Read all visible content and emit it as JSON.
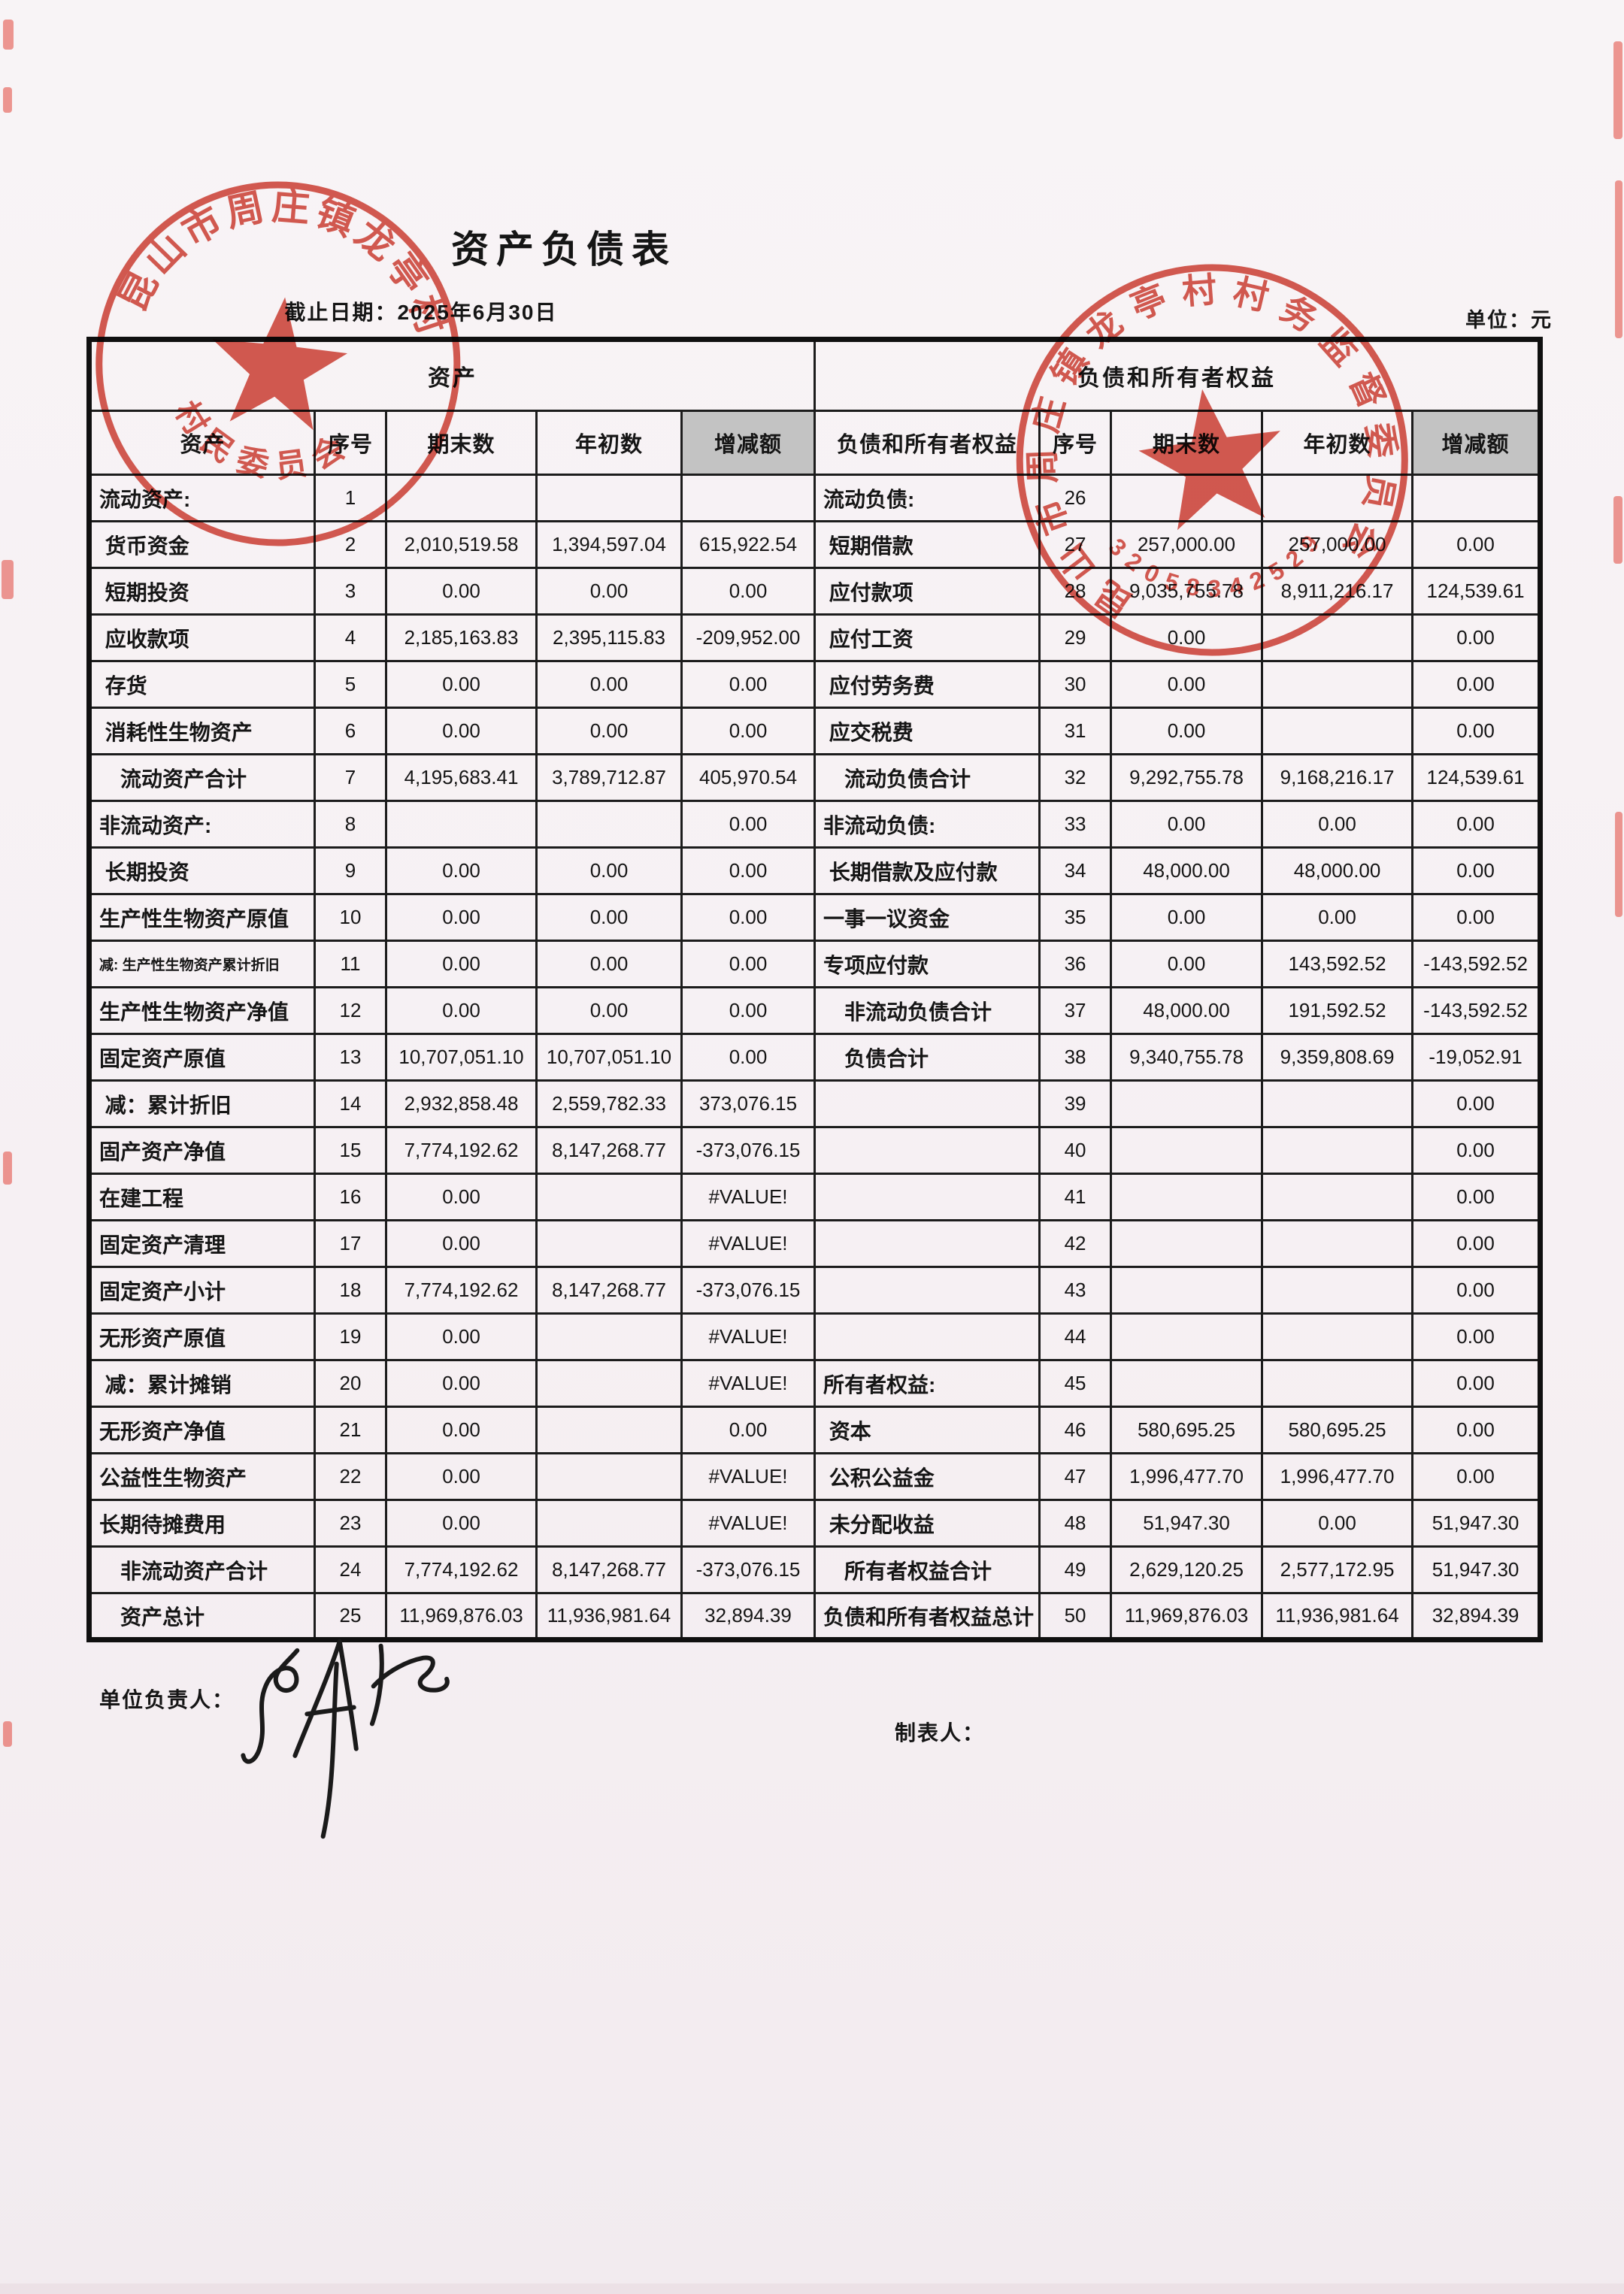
{
  "page": {
    "title": "资产负债表",
    "subtitle": "截止日期：2025年6月30日",
    "unit_label": "单位：元",
    "footer": {
      "left_label": "单位负责人：",
      "right_label": "制表人："
    }
  },
  "table": {
    "group_headers": {
      "assets": "资产",
      "liabilities": "负债和所有者权益"
    },
    "columns": {
      "asset_label": "资产",
      "liab_label": "负债和所有者权益",
      "no": "序号",
      "ending": "期末数",
      "beginning": "年初数",
      "change": "增减额"
    },
    "rows": [
      {
        "a_label": "流动资产:",
        "a_no": "1",
        "a_end": "",
        "a_beg": "",
        "a_chg": "",
        "l_label": "流动负债:",
        "l_no": "26",
        "l_end": "",
        "l_beg": "",
        "l_chg": ""
      },
      {
        "a_label": " 货币资金",
        "a_no": "2",
        "a_end": "2,010,519.58",
        "a_beg": "1,394,597.04",
        "a_chg": "615,922.54",
        "l_label": " 短期借款",
        "l_no": "27",
        "l_end": "257,000.00",
        "l_beg": "257,000.00",
        "l_chg": "0.00"
      },
      {
        "a_label": " 短期投资",
        "a_no": "3",
        "a_end": "0.00",
        "a_beg": "0.00",
        "a_chg": "0.00",
        "l_label": " 应付款项",
        "l_no": "28",
        "l_end": "9,035,755.78",
        "l_beg": "8,911,216.17",
        "l_chg": "124,539.61"
      },
      {
        "a_label": " 应收款项",
        "a_no": "4",
        "a_end": "2,185,163.83",
        "a_beg": "2,395,115.83",
        "a_chg": "-209,952.00",
        "l_label": " 应付工资",
        "l_no": "29",
        "l_end": "0.00",
        "l_beg": "",
        "l_chg": "0.00"
      },
      {
        "a_label": " 存货",
        "a_no": "5",
        "a_end": "0.00",
        "a_beg": "0.00",
        "a_chg": "0.00",
        "l_label": " 应付劳务费",
        "l_no": "30",
        "l_end": "0.00",
        "l_beg": "",
        "l_chg": "0.00"
      },
      {
        "a_label": " 消耗性生物资产",
        "a_no": "6",
        "a_end": "0.00",
        "a_beg": "0.00",
        "a_chg": "0.00",
        "l_label": " 应交税费",
        "l_no": "31",
        "l_end": "0.00",
        "l_beg": "",
        "l_chg": "0.00"
      },
      {
        "a_label": "　流动资产合计",
        "a_no": "7",
        "a_end": "4,195,683.41",
        "a_beg": "3,789,712.87",
        "a_chg": "405,970.54",
        "l_label": "　流动负债合计",
        "l_no": "32",
        "l_end": "9,292,755.78",
        "l_beg": "9,168,216.17",
        "l_chg": "124,539.61"
      },
      {
        "a_label": "非流动资产:",
        "a_no": "8",
        "a_end": "",
        "a_beg": "",
        "a_chg": "0.00",
        "l_label": "非流动负债:",
        "l_no": "33",
        "l_end": "0.00",
        "l_beg": "0.00",
        "l_chg": "0.00"
      },
      {
        "a_label": " 长期投资",
        "a_no": "9",
        "a_end": "0.00",
        "a_beg": "0.00",
        "a_chg": "0.00",
        "l_label": " 长期借款及应付款",
        "l_no": "34",
        "l_end": "48,000.00",
        "l_beg": "48,000.00",
        "l_chg": "0.00"
      },
      {
        "a_label": "生产性生物资产原值",
        "a_no": "10",
        "a_end": "0.00",
        "a_beg": "0.00",
        "a_chg": "0.00",
        "l_label": "一事一议资金",
        "l_no": "35",
        "l_end": "0.00",
        "l_beg": "0.00",
        "l_chg": "0.00"
      },
      {
        "a_label": "减: 生产性生物资产累计折旧",
        "a_small": true,
        "a_no": "11",
        "a_end": "0.00",
        "a_beg": "0.00",
        "a_chg": "0.00",
        "l_label": "专项应付款",
        "l_no": "36",
        "l_end": "0.00",
        "l_beg": "143,592.52",
        "l_chg": "-143,592.52"
      },
      {
        "a_label": "生产性生物资产净值",
        "a_no": "12",
        "a_end": "0.00",
        "a_beg": "0.00",
        "a_chg": "0.00",
        "l_label": "　非流动负债合计",
        "l_no": "37",
        "l_end": "48,000.00",
        "l_beg": "191,592.52",
        "l_chg": "-143,592.52"
      },
      {
        "a_label": "固定资产原值",
        "a_no": "13",
        "a_end": "10,707,051.10",
        "a_beg": "10,707,051.10",
        "a_chg": "0.00",
        "l_label": "　负债合计",
        "l_no": "38",
        "l_end": "9,340,755.78",
        "l_beg": "9,359,808.69",
        "l_chg": "-19,052.91"
      },
      {
        "a_label": " 减：累计折旧",
        "a_no": "14",
        "a_end": "2,932,858.48",
        "a_beg": "2,559,782.33",
        "a_chg": "373,076.15",
        "l_label": "",
        "l_no": "39",
        "l_end": "",
        "l_beg": "",
        "l_chg": "0.00"
      },
      {
        "a_label": "固产资产净值",
        "a_no": "15",
        "a_end": "7,774,192.62",
        "a_beg": "8,147,268.77",
        "a_chg": "-373,076.15",
        "l_label": "",
        "l_no": "40",
        "l_end": "",
        "l_beg": "",
        "l_chg": "0.00"
      },
      {
        "a_label": "在建工程",
        "a_no": "16",
        "a_end": "0.00",
        "a_beg": "",
        "a_chg": "#VALUE!",
        "l_label": "",
        "l_no": "41",
        "l_end": "",
        "l_beg": "",
        "l_chg": "0.00"
      },
      {
        "a_label": "固定资产清理",
        "a_no": "17",
        "a_end": "0.00",
        "a_beg": "",
        "a_chg": "#VALUE!",
        "l_label": "",
        "l_no": "42",
        "l_end": "",
        "l_beg": "",
        "l_chg": "0.00"
      },
      {
        "a_label": "固定资产小计",
        "a_no": "18",
        "a_end": "7,774,192.62",
        "a_beg": "8,147,268.77",
        "a_chg": "-373,076.15",
        "l_label": "",
        "l_no": "43",
        "l_end": "",
        "l_beg": "",
        "l_chg": "0.00"
      },
      {
        "a_label": "无形资产原值",
        "a_no": "19",
        "a_end": "0.00",
        "a_beg": "",
        "a_chg": "#VALUE!",
        "l_label": "",
        "l_no": "44",
        "l_end": "",
        "l_beg": "",
        "l_chg": "0.00"
      },
      {
        "a_label": " 减：累计摊销",
        "a_no": "20",
        "a_end": "0.00",
        "a_beg": "",
        "a_chg": "#VALUE!",
        "l_label": "所有者权益:",
        "l_no": "45",
        "l_end": "",
        "l_beg": "",
        "l_chg": "0.00"
      },
      {
        "a_label": "无形资产净值",
        "a_no": "21",
        "a_end": "0.00",
        "a_beg": "",
        "a_chg": "0.00",
        "l_label": " 资本",
        "l_no": "46",
        "l_end": "580,695.25",
        "l_beg": "580,695.25",
        "l_chg": "0.00"
      },
      {
        "a_label": "公益性生物资产",
        "a_no": "22",
        "a_end": "0.00",
        "a_beg": "",
        "a_chg": "#VALUE!",
        "l_label": " 公积公益金",
        "l_no": "47",
        "l_end": "1,996,477.70",
        "l_beg": "1,996,477.70",
        "l_chg": "0.00"
      },
      {
        "a_label": "长期待摊费用",
        "a_no": "23",
        "a_end": "0.00",
        "a_beg": "",
        "a_chg": "#VALUE!",
        "l_label": " 未分配收益",
        "l_no": "48",
        "l_end": "51,947.30",
        "l_beg": "0.00",
        "l_chg": "51,947.30"
      },
      {
        "a_label": "　非流动资产合计",
        "a_no": "24",
        "a_end": "7,774,192.62",
        "a_beg": "8,147,268.77",
        "a_chg": "-373,076.15",
        "l_label": "　所有者权益合计",
        "l_no": "49",
        "l_end": "2,629,120.25",
        "l_beg": "2,577,172.95",
        "l_chg": "51,947.30"
      },
      {
        "a_label": "　资产总计",
        "a_no": "25",
        "a_end": "11,969,876.03",
        "a_beg": "11,936,981.64",
        "a_chg": "32,894.39",
        "l_label": "负债和所有者权益总计",
        "l_no": "50",
        "l_end": "11,969,876.03",
        "l_beg": "11,936,981.64",
        "l_chg": "32,894.39"
      }
    ]
  },
  "stamps": [
    {
      "arc_text": "昆山市周庄镇龙亭村",
      "bottom_text": "村民委员会",
      "color": "#cf382b"
    },
    {
      "arc_text": "昆山市周庄镇龙亭村村务监督委员会",
      "bottom_text": "32058342529",
      "color": "#cf382b"
    }
  ],
  "colors": {
    "stamp_red": "#cf382b",
    "table_line": "#1c1c1c",
    "header_shade": "#c3c3c3",
    "paper": "#f6f0f3",
    "ink": "#151515"
  }
}
